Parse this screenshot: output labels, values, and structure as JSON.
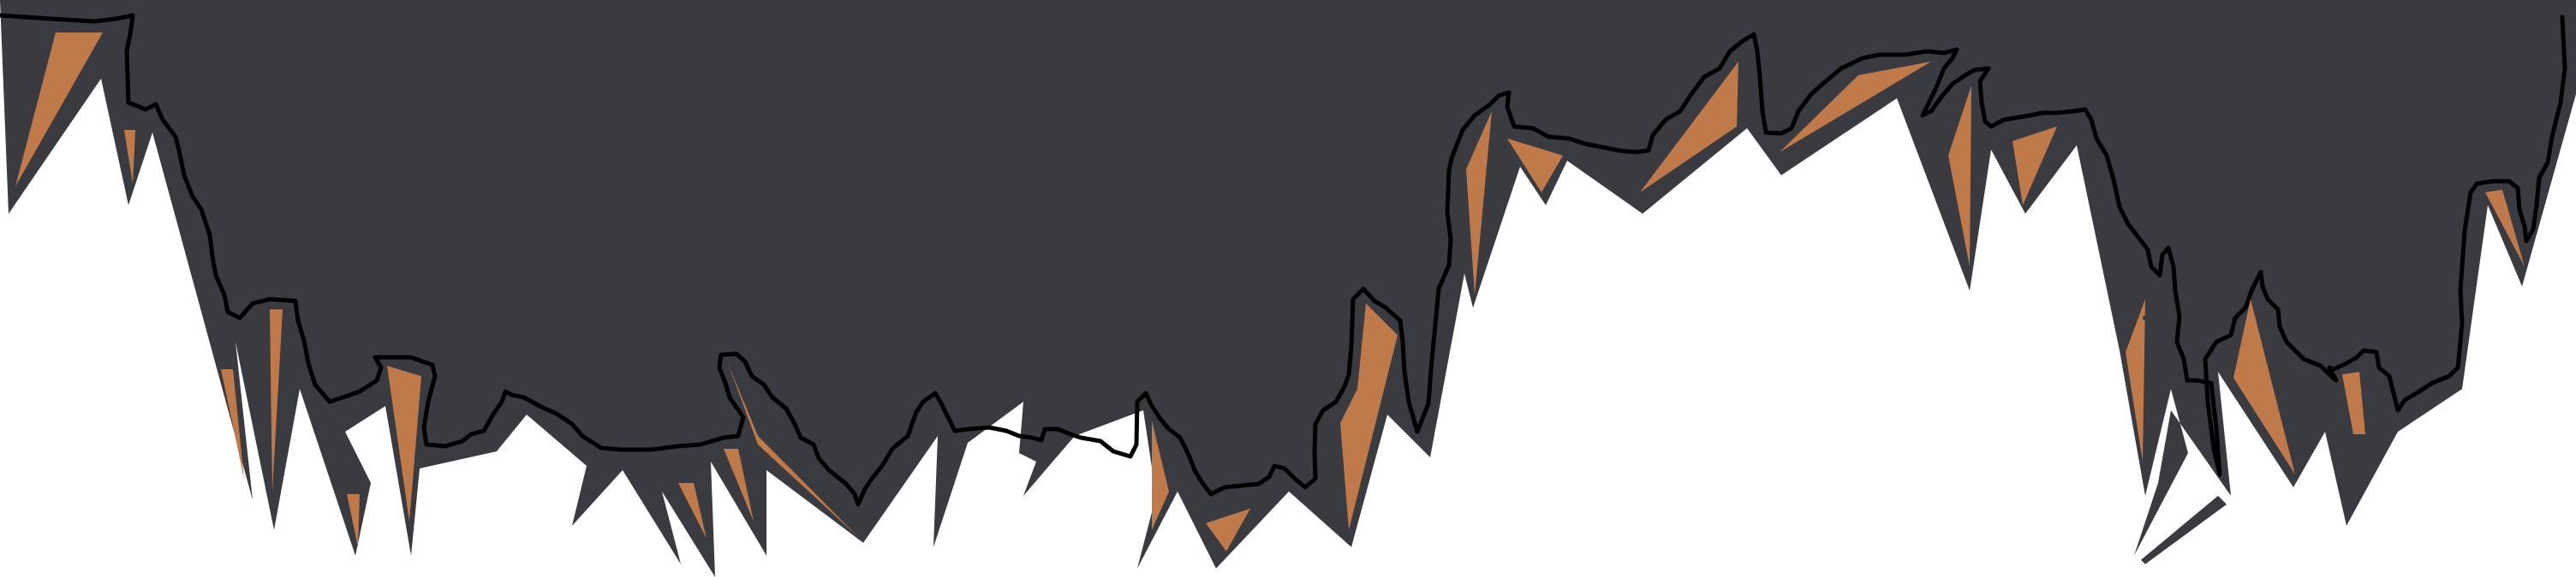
{
  "scene": {
    "type": "cave-ceiling-stalactites",
    "colors": {
      "background": "#ffffff",
      "rock": "#3a3b40",
      "outline": "#000000",
      "crystal": "#c07a4a"
    }
  }
}
